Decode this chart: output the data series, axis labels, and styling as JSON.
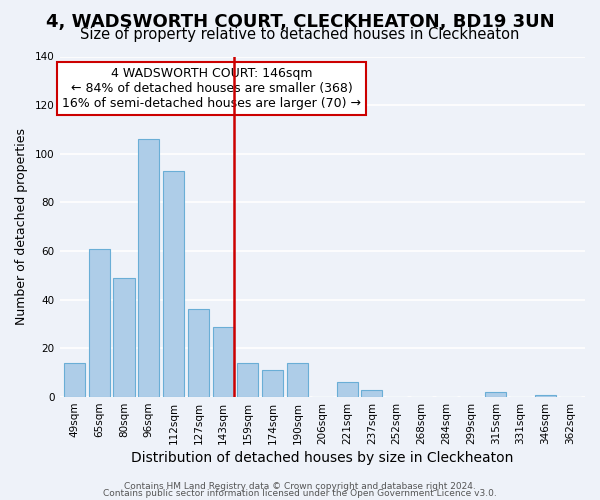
{
  "title": "4, WADSWORTH COURT, CLECKHEATON, BD19 3UN",
  "subtitle": "Size of property relative to detached houses in Cleckheaton",
  "xlabel": "Distribution of detached houses by size in Cleckheaton",
  "ylabel": "Number of detached properties",
  "categories": [
    "49sqm",
    "65sqm",
    "80sqm",
    "96sqm",
    "112sqm",
    "127sqm",
    "143sqm",
    "159sqm",
    "174sqm",
    "190sqm",
    "206sqm",
    "221sqm",
    "237sqm",
    "252sqm",
    "268sqm",
    "284sqm",
    "299sqm",
    "315sqm",
    "331sqm",
    "346sqm",
    "362sqm"
  ],
  "values": [
    14,
    61,
    49,
    106,
    93,
    36,
    29,
    14,
    11,
    14,
    0,
    6,
    3,
    0,
    0,
    0,
    0,
    2,
    0,
    1,
    0
  ],
  "bar_color": "#aecde8",
  "bar_edge_color": "#6aaed6",
  "ref_bar_index": 6,
  "reference_line_color": "#cc0000",
  "annotation_line1": "4 WADSWORTH COURT: 146sqm",
  "annotation_line2": "← 84% of detached houses are smaller (368)",
  "annotation_line3": "16% of semi-detached houses are larger (70) →",
  "annotation_box_color": "#ffffff",
  "annotation_box_edge_color": "#cc0000",
  "ylim": [
    0,
    140
  ],
  "yticks": [
    0,
    20,
    40,
    60,
    80,
    100,
    120,
    140
  ],
  "background_color": "#eef2f9",
  "grid_color": "#ffffff",
  "title_fontsize": 13,
  "subtitle_fontsize": 10.5,
  "xlabel_fontsize": 10,
  "ylabel_fontsize": 9,
  "tick_fontsize": 7.5,
  "annotation_fontsize": 9,
  "footer_fontsize": 6.5,
  "footer_line1": "Contains HM Land Registry data © Crown copyright and database right 2024.",
  "footer_line2": "Contains public sector information licensed under the Open Government Licence v3.0."
}
